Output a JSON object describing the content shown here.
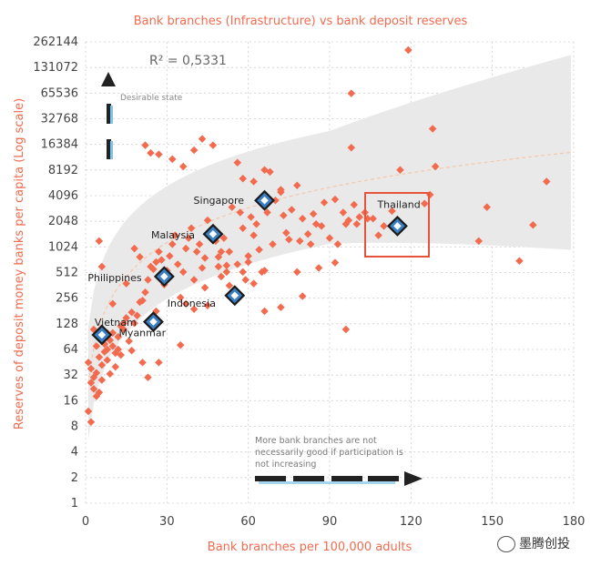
{
  "chart_data": {
    "type": "scatter",
    "title": "Bank branches (Infrastructure) vs bank deposit reserves",
    "xlabel": "Bank branches per 100,000 adults",
    "ylabel": "Reserves of deposit money banks per capita (Log scale)",
    "xlim": [
      0,
      180
    ],
    "ylim_log2": [
      0,
      18
    ],
    "x_ticks": [
      "0",
      "30",
      "60",
      "90",
      "120",
      "150",
      "180"
    ],
    "y_ticks": [
      "1",
      "2",
      "4",
      "8",
      "16",
      "32",
      "64",
      "128",
      "256",
      "512",
      "1024",
      "2048",
      "4096",
      "8192",
      "16384",
      "32768",
      "65536",
      "131072",
      "262144"
    ],
    "grid": true,
    "y_scale": "log2",
    "annotation_r2": "R² = 0,5331",
    "desirable_label": "Desirable state",
    "note_lines": [
      "More bank branches are not",
      "necessarily good if participation is",
      "not increasing"
    ],
    "colors": {
      "points": "#f26b4f",
      "highlight_fill": "#3a7fc1",
      "highlight_stroke": "#1a1a1a",
      "band": "#e9e9e9",
      "trend": "#f5c7a8",
      "box": "#e5533a"
    },
    "highlights": [
      {
        "name": "Singapore",
        "x": 66,
        "y": 3600
      },
      {
        "name": "Malaysia",
        "x": 47,
        "y": 1450
      },
      {
        "name": "Philippines",
        "x": 29,
        "y": 460
      },
      {
        "name": "Indonesia",
        "x": 55,
        "y": 275
      },
      {
        "name": "Myanmar",
        "x": 25,
        "y": 135
      },
      {
        "name": "Vietnam",
        "x": 6,
        "y": 95
      },
      {
        "name": "Thailand",
        "x": 115,
        "y": 1800
      }
    ],
    "points": [
      [
        1,
        45
      ],
      [
        2,
        38
      ],
      [
        2,
        26
      ],
      [
        3,
        30
      ],
      [
        3,
        22
      ],
      [
        4,
        34
      ],
      [
        4,
        18
      ],
      [
        5,
        20
      ],
      [
        5,
        52
      ],
      [
        6,
        28
      ],
      [
        6,
        42
      ],
      [
        7,
        60
      ],
      [
        7,
        74
      ],
      [
        8,
        64
      ],
      [
        8,
        48
      ],
      [
        9,
        82
      ],
      [
        10,
        70
      ],
      [
        10,
        100
      ],
      [
        11,
        58
      ],
      [
        12,
        90
      ],
      [
        12,
        64
      ],
      [
        13,
        120
      ],
      [
        14,
        110
      ],
      [
        15,
        150
      ],
      [
        16,
        80
      ],
      [
        17,
        175
      ],
      [
        18,
        130
      ],
      [
        19,
        160
      ],
      [
        20,
        230
      ],
      [
        21,
        240
      ],
      [
        22,
        300
      ],
      [
        23,
        420
      ],
      [
        24,
        600
      ],
      [
        25,
        560
      ],
      [
        26,
        680
      ],
      [
        27,
        900
      ],
      [
        28,
        720
      ],
      [
        29,
        370
      ],
      [
        30,
        540
      ],
      [
        31,
        800
      ],
      [
        32,
        1100
      ],
      [
        33,
        1400
      ],
      [
        34,
        640
      ],
      [
        35,
        260
      ],
      [
        36,
        520
      ],
      [
        37,
        980
      ],
      [
        38,
        1300
      ],
      [
        39,
        1700
      ],
      [
        40,
        420
      ],
      [
        41,
        900
      ],
      [
        42,
        1100
      ],
      [
        43,
        580
      ],
      [
        44,
        760
      ],
      [
        45,
        2100
      ],
      [
        46,
        1600
      ],
      [
        48,
        1200
      ],
      [
        49,
        780
      ],
      [
        50,
        900
      ],
      [
        51,
        1300
      ],
      [
        52,
        520
      ],
      [
        53,
        900
      ],
      [
        54,
        3000
      ],
      [
        56,
        640
      ],
      [
        57,
        2600
      ],
      [
        58,
        1700
      ],
      [
        59,
        420
      ],
      [
        60,
        800
      ],
      [
        61,
        2300
      ],
      [
        62,
        1400
      ],
      [
        63,
        1900
      ],
      [
        64,
        950
      ],
      [
        65,
        520
      ],
      [
        66,
        8200
      ],
      [
        67,
        2600
      ],
      [
        69,
        1100
      ],
      [
        70,
        3600
      ],
      [
        72,
        4800
      ],
      [
        73,
        2400
      ],
      [
        74,
        1500
      ],
      [
        75,
        1250
      ],
      [
        76,
        2800
      ],
      [
        78,
        5400
      ],
      [
        79,
        1200
      ],
      [
        80,
        2200
      ],
      [
        82,
        1450
      ],
      [
        83,
        1100
      ],
      [
        84,
        2500
      ],
      [
        85,
        1900
      ],
      [
        87,
        1800
      ],
      [
        88,
        3400
      ],
      [
        90,
        1300
      ],
      [
        92,
        3700
      ],
      [
        93,
        1100
      ],
      [
        95,
        2600
      ],
      [
        96,
        1900
      ],
      [
        97,
        2100
      ],
      [
        98,
        15000
      ],
      [
        99,
        3200
      ],
      [
        100,
        1900
      ],
      [
        101,
        2300
      ],
      [
        103,
        2600
      ],
      [
        104,
        2200
      ],
      [
        106,
        2200
      ],
      [
        108,
        1400
      ],
      [
        110,
        1800
      ],
      [
        113,
        2700
      ],
      [
        116,
        8200
      ],
      [
        119,
        210000
      ],
      [
        125,
        3300
      ],
      [
        127,
        4200
      ],
      [
        128,
        25000
      ],
      [
        129,
        9000
      ],
      [
        145,
        1200
      ],
      [
        148,
        3000
      ],
      [
        160,
        700
      ],
      [
        165,
        1850
      ],
      [
        170,
        6000
      ],
      [
        1,
        12
      ],
      [
        2,
        9
      ],
      [
        5,
        1200
      ],
      [
        6,
        600
      ],
      [
        26,
        180
      ],
      [
        37,
        220
      ],
      [
        45,
        210
      ],
      [
        49,
        600
      ],
      [
        53,
        360
      ],
      [
        62,
        380
      ],
      [
        66,
        180
      ],
      [
        72,
        200
      ],
      [
        78,
        520
      ],
      [
        80,
        270
      ],
      [
        86,
        580
      ],
      [
        92,
        670
      ],
      [
        96,
        110
      ],
      [
        98,
        65000
      ],
      [
        22,
        16000
      ],
      [
        24,
        13000
      ],
      [
        27,
        12500
      ],
      [
        32,
        11000
      ],
      [
        36,
        9000
      ],
      [
        40,
        14000
      ],
      [
        43,
        19000
      ],
      [
        47,
        16000
      ],
      [
        56,
        10000
      ],
      [
        58,
        6500
      ],
      [
        62,
        6000
      ],
      [
        68,
        7800
      ],
      [
        72,
        4500
      ],
      [
        20,
        780
      ],
      [
        18,
        980
      ],
      [
        15,
        380
      ],
      [
        14,
        130
      ],
      [
        9,
        33
      ],
      [
        11,
        40
      ],
      [
        13,
        55
      ],
      [
        17,
        62
      ],
      [
        21,
        45
      ],
      [
        23,
        30
      ],
      [
        27,
        45
      ],
      [
        35,
        72
      ],
      [
        40,
        190
      ],
      [
        44,
        340
      ],
      [
        50,
        460
      ],
      [
        52,
        620
      ],
      [
        58,
        520
      ],
      [
        60,
        680
      ],
      [
        66,
        540
      ],
      [
        4,
        70
      ],
      [
        3,
        110
      ],
      [
        8,
        100
      ],
      [
        10,
        220
      ]
    ]
  },
  "watermark": "墨腾创投"
}
